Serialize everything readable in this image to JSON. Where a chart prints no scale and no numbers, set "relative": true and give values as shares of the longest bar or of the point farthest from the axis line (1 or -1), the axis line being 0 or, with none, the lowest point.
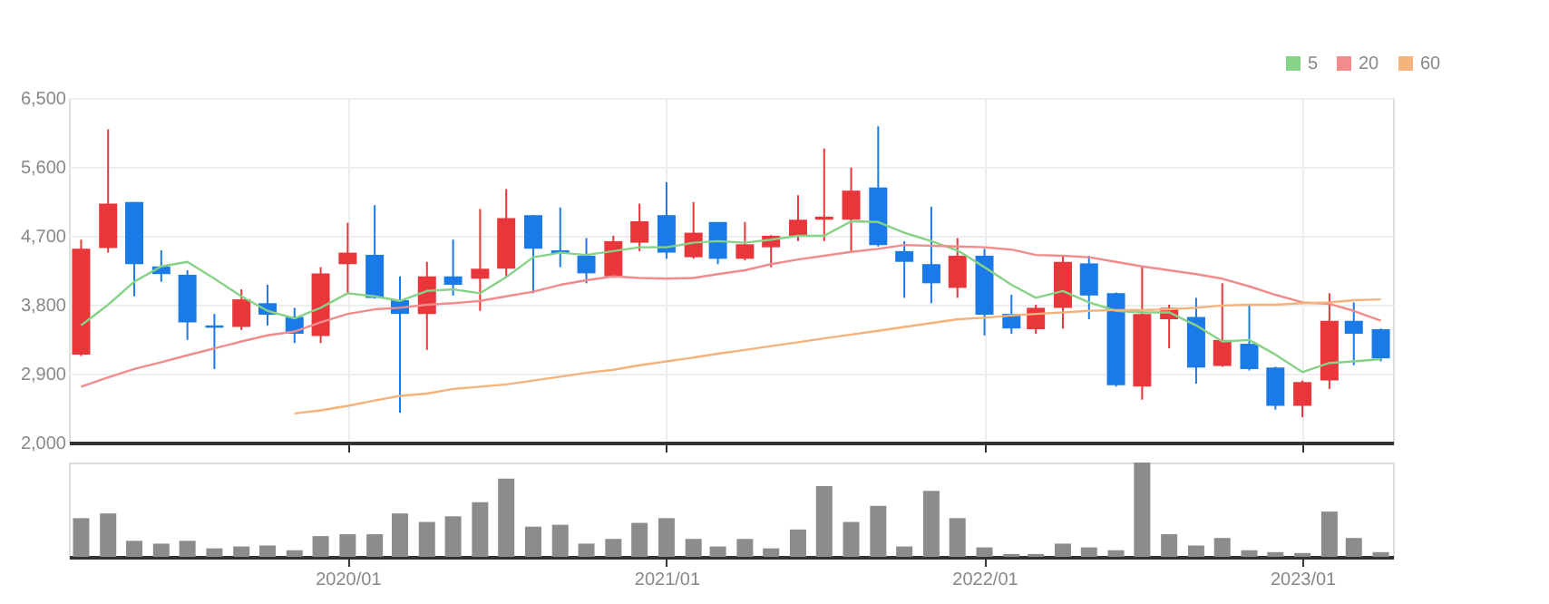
{
  "chart_data": [
    {
      "type": "candlestick",
      "x": [
        "2019-03",
        "2019-04",
        "2019-05",
        "2019-06",
        "2019-07",
        "2019-08",
        "2019-09",
        "2019-10",
        "2019-11",
        "2019-12",
        "2020-01",
        "2020-02",
        "2020-03",
        "2020-04",
        "2020-05",
        "2020-06",
        "2020-07",
        "2020-08",
        "2020-09",
        "2020-10",
        "2020-11",
        "2020-12",
        "2021-01",
        "2021-02",
        "2021-03",
        "2021-04",
        "2021-05",
        "2021-06",
        "2021-07",
        "2021-08",
        "2021-09",
        "2021-10",
        "2021-11",
        "2021-12",
        "2022-01",
        "2022-02",
        "2022-03",
        "2022-04",
        "2022-05",
        "2022-06",
        "2022-07",
        "2022-08",
        "2022-09",
        "2022-10",
        "2022-11",
        "2022-12",
        "2023-01",
        "2023-02",
        "2023-03",
        "2023-04"
      ],
      "ohlc": [
        [
          3150,
          4650,
          3130,
          4530
        ],
        [
          4540,
          6090,
          4480,
          5120
        ],
        [
          5140,
          5140,
          3910,
          4330
        ],
        [
          4300,
          4510,
          4100,
          4200
        ],
        [
          4190,
          4250,
          3340,
          3570
        ],
        [
          3530,
          3680,
          2960,
          3500
        ],
        [
          3510,
          4000,
          3470,
          3870
        ],
        [
          3820,
          4060,
          3530,
          3670
        ],
        [
          3640,
          3760,
          3300,
          3420
        ],
        [
          3390,
          4290,
          3300,
          4210
        ],
        [
          4330,
          4870,
          3950,
          4480
        ],
        [
          4450,
          5100,
          3880,
          3890
        ],
        [
          3860,
          4170,
          2390,
          3680
        ],
        [
          3680,
          4360,
          3210,
          4170
        ],
        [
          4170,
          4650,
          3920,
          4060
        ],
        [
          4140,
          5050,
          3720,
          4270
        ],
        [
          4270,
          5310,
          4170,
          4930
        ],
        [
          4970,
          4970,
          3950,
          4530
        ],
        [
          4510,
          5070,
          4290,
          4470
        ],
        [
          4440,
          4670,
          4080,
          4210
        ],
        [
          4170,
          4700,
          4150,
          4630
        ],
        [
          4610,
          5120,
          4500,
          4890
        ],
        [
          4970,
          5400,
          4400,
          4480
        ],
        [
          4420,
          5140,
          4400,
          4740
        ],
        [
          4880,
          4880,
          4330,
          4400
        ],
        [
          4400,
          4880,
          4380,
          4590
        ],
        [
          4550,
          4710,
          4290,
          4700
        ],
        [
          4700,
          5230,
          4630,
          4910
        ],
        [
          4910,
          5840,
          4630,
          4950
        ],
        [
          4910,
          5590,
          4480,
          5290
        ],
        [
          5330,
          6130,
          4560,
          4580
        ],
        [
          4500,
          4630,
          3890,
          4360
        ],
        [
          4330,
          5080,
          3820,
          4080
        ],
        [
          4020,
          4670,
          3890,
          4440
        ],
        [
          4440,
          4530,
          3400,
          3670
        ],
        [
          3680,
          3930,
          3420,
          3490
        ],
        [
          3480,
          3800,
          3420,
          3760
        ],
        [
          3760,
          4440,
          3490,
          4360
        ],
        [
          4340,
          4440,
          3610,
          3920
        ],
        [
          3950,
          3960,
          2730,
          2750
        ],
        [
          2730,
          4290,
          2560,
          3680
        ],
        [
          3610,
          3800,
          3230,
          3760
        ],
        [
          3640,
          3890,
          2770,
          2980
        ],
        [
          3000,
          4080,
          2990,
          3340
        ],
        [
          3290,
          3800,
          2940,
          2960
        ],
        [
          2980,
          2990,
          2430,
          2480
        ],
        [
          2480,
          2810,
          2330,
          2790
        ],
        [
          2810,
          3950,
          2700,
          3590
        ],
        [
          3590,
          3830,
          3010,
          3420
        ],
        [
          3480,
          3490,
          3060,
          3100
        ]
      ],
      "colors": [
        "#e8363a",
        "#e8363a",
        "#1a7ae8",
        "#1a7ae8",
        "#1a7ae8",
        "#1a7ae8",
        "#e8363a",
        "#1a7ae8",
        "#1a7ae8",
        "#e8363a",
        "#e8363a",
        "#1a7ae8",
        "#1a7ae8",
        "#e8363a",
        "#1a7ae8",
        "#e8363a",
        "#e8363a",
        "#1a7ae8",
        "#1a7ae8",
        "#1a7ae8",
        "#e8363a",
        "#e8363a",
        "#1a7ae8",
        "#e8363a",
        "#1a7ae8",
        "#e8363a",
        "#e8363a",
        "#e8363a",
        "#e8363a",
        "#e8363a",
        "#1a7ae8",
        "#1a7ae8",
        "#1a7ae8",
        "#e8363a",
        "#1a7ae8",
        "#1a7ae8",
        "#e8363a",
        "#e8363a",
        "#1a7ae8",
        "#1a7ae8",
        "#e8363a",
        "#e8363a",
        "#1a7ae8",
        "#e8363a",
        "#1a7ae8",
        "#1a7ae8",
        "#e8363a",
        "#e8363a",
        "#1a7ae8",
        "#1a7ae8"
      ],
      "series": [
        {
          "name": "5",
          "type": "line",
          "color": "#86d286",
          "values": [
            3530,
            3800,
            4100,
            4300,
            4360,
            4140,
            3910,
            3720,
            3620,
            3760,
            3950,
            3910,
            3850,
            3980,
            4000,
            3950,
            4160,
            4420,
            4480,
            4450,
            4500,
            4550,
            4550,
            4610,
            4630,
            4610,
            4650,
            4700,
            4700,
            4890,
            4880,
            4740,
            4630,
            4510,
            4290,
            4060,
            3890,
            3980,
            3830,
            3720,
            3700,
            3700,
            3530,
            3320,
            3340,
            3150,
            2920,
            3040,
            3060,
            3090
          ]
        },
        {
          "name": "20",
          "type": "line",
          "color": "#f28b8b",
          "values": [
            2730,
            2850,
            2960,
            3050,
            3140,
            3230,
            3320,
            3400,
            3450,
            3570,
            3680,
            3740,
            3760,
            3800,
            3820,
            3850,
            3910,
            3970,
            4060,
            4120,
            4170,
            4150,
            4140,
            4150,
            4200,
            4250,
            4330,
            4390,
            4440,
            4490,
            4530,
            4580,
            4570,
            4560,
            4550,
            4520,
            4450,
            4440,
            4420,
            4360,
            4300,
            4250,
            4200,
            4140,
            4040,
            3930,
            3830,
            3810,
            3720,
            3590
          ]
        },
        {
          "name": "60",
          "type": "line",
          "color": "#f5b27a",
          "values": [
            null,
            null,
            null,
            null,
            null,
            null,
            null,
            null,
            2380,
            2420,
            2480,
            2550,
            2610,
            2640,
            2700,
            2730,
            2760,
            2810,
            2860,
            2910,
            2950,
            3010,
            3060,
            3110,
            3160,
            3210,
            3260,
            3310,
            3360,
            3410,
            3460,
            3510,
            3560,
            3610,
            3630,
            3660,
            3680,
            3700,
            3720,
            3730,
            3730,
            3740,
            3760,
            3790,
            3800,
            3800,
            3820,
            3830,
            3860,
            3870
          ]
        }
      ],
      "xlim": [
        "2019-02-15",
        "2023-04-15"
      ],
      "xticks": [
        {
          "value": "2020-01",
          "label": null
        },
        {
          "value": "2021-01",
          "label": null
        },
        {
          "value": "2022-01",
          "label": null
        },
        {
          "value": "2023-01",
          "label": null
        }
      ],
      "ylim": [
        2000,
        6500
      ],
      "yticks": [
        {
          "value": 2000,
          "label": "2,000"
        },
        {
          "value": 2900,
          "label": "2,900"
        },
        {
          "value": 3800,
          "label": "3,800"
        },
        {
          "value": 4700,
          "label": "4,700"
        },
        {
          "value": 5600,
          "label": "5,600"
        },
        {
          "value": 6500,
          "label": "6,500"
        }
      ],
      "grid": true,
      "legend": "top right",
      "tick_labels": "y"
    },
    {
      "type": "bar",
      "relative": true,
      "color": "#8c8c8c",
      "x": [
        "2019-03",
        "2019-04",
        "2019-05",
        "2019-06",
        "2019-07",
        "2019-08",
        "2019-09",
        "2019-10",
        "2019-11",
        "2019-12",
        "2020-01",
        "2020-02",
        "2020-03",
        "2020-04",
        "2020-05",
        "2020-06",
        "2020-07",
        "2020-08",
        "2020-09",
        "2020-10",
        "2020-11",
        "2020-12",
        "2021-01",
        "2021-02",
        "2021-03",
        "2021-04",
        "2021-05",
        "2021-06",
        "2021-07",
        "2021-08",
        "2021-09",
        "2021-10",
        "2021-11",
        "2021-12",
        "2022-01",
        "2022-02",
        "2022-03",
        "2022-04",
        "2022-05",
        "2022-06",
        "2022-07",
        "2022-08",
        "2022-09",
        "2022-10",
        "2022-11",
        "2022-12",
        "2023-01",
        "2023-02",
        "2023-03",
        "2023-04"
      ],
      "values": [
        0.41,
        0.46,
        0.17,
        0.14,
        0.17,
        0.09,
        0.11,
        0.12,
        0.07,
        0.22,
        0.24,
        0.24,
        0.46,
        0.37,
        0.43,
        0.58,
        0.83,
        0.32,
        0.34,
        0.14,
        0.19,
        0.36,
        0.41,
        0.19,
        0.11,
        0.19,
        0.09,
        0.29,
        0.75,
        0.37,
        0.54,
        0.11,
        0.7,
        0.41,
        0.1,
        0.03,
        0.03,
        0.14,
        0.1,
        0.07,
        1,
        0.24,
        0.12,
        0.2,
        0.07,
        0.05,
        0.04,
        0.48,
        0.2,
        0.05
      ],
      "xlim": [
        "2019-02-15",
        "2023-04-15"
      ],
      "xticks": [
        {
          "value": "2020-01",
          "label": "2020/01"
        },
        {
          "value": "2021-01",
          "label": "2021/01"
        },
        {
          "value": "2022-01",
          "label": "2022/01"
        },
        {
          "value": "2023-01",
          "label": "2023/01"
        }
      ],
      "grid": false,
      "tick_labels": "x"
    }
  ]
}
